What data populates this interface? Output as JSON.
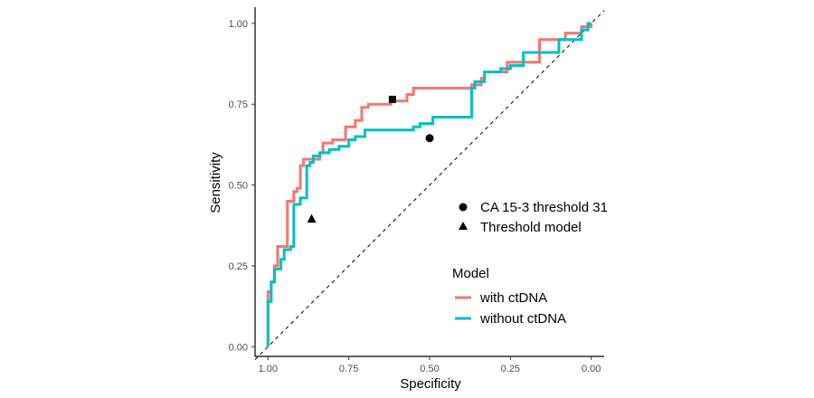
{
  "chart_data": {
    "type": "line",
    "xlabel": "Specificity",
    "ylabel": "Sensitivity",
    "x_reversed": true,
    "xlim": [
      1.04,
      -0.04
    ],
    "ylim": [
      -0.03,
      1.05
    ],
    "x_ticks": [
      1.0,
      0.75,
      0.5,
      0.25,
      0.0
    ],
    "x_tick_labels": [
      "1.00",
      "0.75",
      "0.50",
      "0.25",
      "0.00"
    ],
    "y_ticks": [
      0.0,
      0.25,
      0.5,
      0.75,
      1.0
    ],
    "y_tick_labels": [
      "0.00",
      "0.25",
      "0.50",
      "0.75",
      "1.00"
    ],
    "grid": false,
    "reference_line": {
      "from": [
        1.0,
        0.0
      ],
      "to": [
        0.0,
        1.0
      ],
      "style": "dashed",
      "color": "#000000"
    },
    "series": [
      {
        "name": "with ctDNA",
        "color": "#F8766D",
        "points": [
          [
            1.0,
            0.0
          ],
          [
            1.0,
            0.17
          ],
          [
            0.99,
            0.17
          ],
          [
            0.99,
            0.2
          ],
          [
            0.98,
            0.2
          ],
          [
            0.98,
            0.25
          ],
          [
            0.97,
            0.25
          ],
          [
            0.97,
            0.31
          ],
          [
            0.94,
            0.31
          ],
          [
            0.94,
            0.45
          ],
          [
            0.92,
            0.45
          ],
          [
            0.92,
            0.48
          ],
          [
            0.91,
            0.48
          ],
          [
            0.91,
            0.49
          ],
          [
            0.9,
            0.49
          ],
          [
            0.9,
            0.56
          ],
          [
            0.89,
            0.56
          ],
          [
            0.89,
            0.58
          ],
          [
            0.87,
            0.58
          ],
          [
            0.87,
            0.58
          ],
          [
            0.84,
            0.58
          ],
          [
            0.84,
            0.6
          ],
          [
            0.83,
            0.6
          ],
          [
            0.83,
            0.63
          ],
          [
            0.8,
            0.63
          ],
          [
            0.8,
            0.64
          ],
          [
            0.76,
            0.64
          ],
          [
            0.76,
            0.68
          ],
          [
            0.73,
            0.68
          ],
          [
            0.73,
            0.7
          ],
          [
            0.71,
            0.7
          ],
          [
            0.71,
            0.74
          ],
          [
            0.69,
            0.74
          ],
          [
            0.69,
            0.75
          ],
          [
            0.62,
            0.75
          ],
          [
            0.62,
            0.76
          ],
          [
            0.57,
            0.76
          ],
          [
            0.57,
            0.78
          ],
          [
            0.55,
            0.78
          ],
          [
            0.55,
            0.8
          ],
          [
            0.37,
            0.8
          ],
          [
            0.37,
            0.81
          ],
          [
            0.34,
            0.81
          ],
          [
            0.34,
            0.83
          ],
          [
            0.33,
            0.83
          ],
          [
            0.33,
            0.85
          ],
          [
            0.26,
            0.85
          ],
          [
            0.26,
            0.88
          ],
          [
            0.23,
            0.88
          ],
          [
            0.23,
            0.88
          ],
          [
            0.16,
            0.88
          ],
          [
            0.16,
            0.95
          ],
          [
            0.12,
            0.95
          ],
          [
            0.12,
            0.95
          ],
          [
            0.08,
            0.95
          ],
          [
            0.08,
            0.97
          ],
          [
            0.03,
            0.97
          ],
          [
            0.03,
            0.99
          ],
          [
            0.0,
            0.99
          ],
          [
            0.0,
            1.0
          ]
        ]
      },
      {
        "name": "without ctDNA",
        "color": "#00BFC4",
        "points": [
          [
            1.0,
            0.0
          ],
          [
            1.0,
            0.14
          ],
          [
            0.99,
            0.14
          ],
          [
            0.99,
            0.2
          ],
          [
            0.98,
            0.2
          ],
          [
            0.98,
            0.24
          ],
          [
            0.96,
            0.24
          ],
          [
            0.96,
            0.27
          ],
          [
            0.95,
            0.27
          ],
          [
            0.95,
            0.3
          ],
          [
            0.93,
            0.3
          ],
          [
            0.93,
            0.31
          ],
          [
            0.92,
            0.31
          ],
          [
            0.92,
            0.44
          ],
          [
            0.9,
            0.44
          ],
          [
            0.9,
            0.46
          ],
          [
            0.88,
            0.46
          ],
          [
            0.88,
            0.56
          ],
          [
            0.87,
            0.56
          ],
          [
            0.87,
            0.57
          ],
          [
            0.86,
            0.57
          ],
          [
            0.86,
            0.59
          ],
          [
            0.84,
            0.59
          ],
          [
            0.84,
            0.6
          ],
          [
            0.81,
            0.6
          ],
          [
            0.81,
            0.61
          ],
          [
            0.78,
            0.61
          ],
          [
            0.78,
            0.62
          ],
          [
            0.75,
            0.62
          ],
          [
            0.75,
            0.64
          ],
          [
            0.73,
            0.64
          ],
          [
            0.73,
            0.65
          ],
          [
            0.7,
            0.65
          ],
          [
            0.7,
            0.67
          ],
          [
            0.55,
            0.67
          ],
          [
            0.55,
            0.68
          ],
          [
            0.53,
            0.68
          ],
          [
            0.53,
            0.69
          ],
          [
            0.49,
            0.69
          ],
          [
            0.49,
            0.71
          ],
          [
            0.37,
            0.71
          ],
          [
            0.37,
            0.8
          ],
          [
            0.36,
            0.8
          ],
          [
            0.36,
            0.82
          ],
          [
            0.33,
            0.82
          ],
          [
            0.33,
            0.85
          ],
          [
            0.28,
            0.85
          ],
          [
            0.28,
            0.86
          ],
          [
            0.25,
            0.86
          ],
          [
            0.25,
            0.87
          ],
          [
            0.21,
            0.87
          ],
          [
            0.21,
            0.91
          ],
          [
            0.1,
            0.91
          ],
          [
            0.1,
            0.95
          ],
          [
            0.03,
            0.95
          ],
          [
            0.03,
            0.98
          ],
          [
            0.01,
            0.98
          ],
          [
            0.01,
            1.0
          ],
          [
            0.0,
            1.0
          ]
        ]
      }
    ],
    "markers": [
      {
        "name": "CA 15-3 threshold 31",
        "shape": "circle",
        "x": 0.5,
        "y": 0.645,
        "color": "#000000"
      },
      {
        "name": "Threshold model",
        "shape": "triangle",
        "x": 0.865,
        "y": 0.395,
        "color": "#000000"
      },
      {
        "name": "",
        "shape": "square",
        "x": 0.615,
        "y": 0.765,
        "color": "#000000"
      }
    ],
    "legend_shapes": {
      "placement": "inside-bottom-right",
      "items": [
        {
          "shape": "circle",
          "label": "CA 15-3 threshold 31"
        },
        {
          "shape": "triangle",
          "label": "Threshold model"
        }
      ]
    },
    "legend_model": {
      "title": "Model",
      "placement": "inside-bottom-right",
      "items": [
        {
          "label": "with ctDNA",
          "color": "#F8766D"
        },
        {
          "label": "without ctDNA",
          "color": "#00BFC4"
        }
      ]
    }
  }
}
